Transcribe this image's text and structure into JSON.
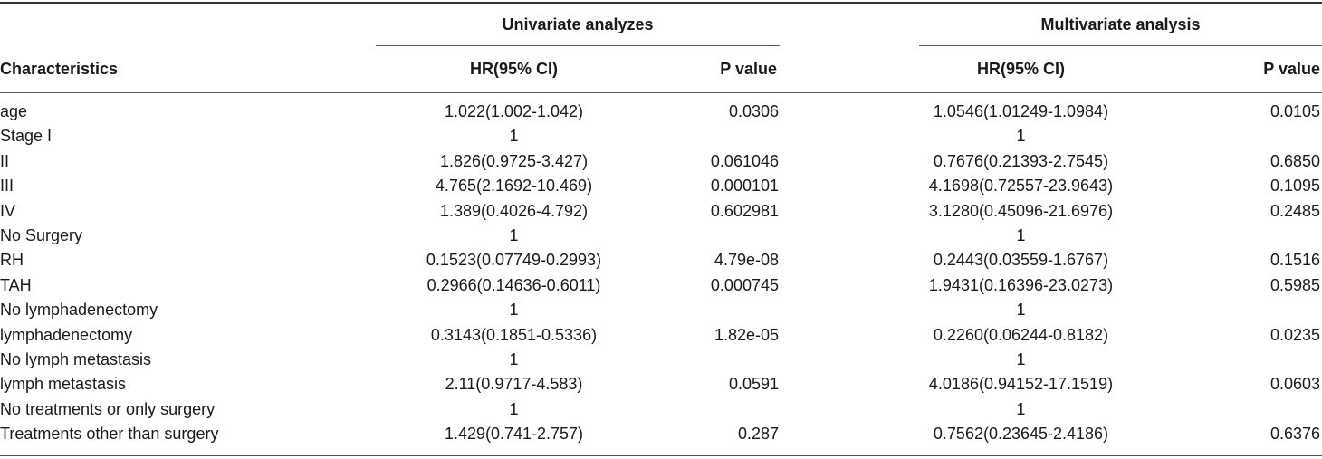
{
  "header": {
    "group_univariate": "Univariate analyzes",
    "group_multivariate": "Multivariate analysis",
    "col_characteristics": "Characteristics",
    "col_hr_uni": "HR(95% CI)",
    "col_p_uni": "P value",
    "col_hr_multi": "HR(95% CI)",
    "col_p_multi": "P value"
  },
  "rows": [
    {
      "name": "age",
      "hr_uni": "1.022(1.002-1.042)",
      "p_uni": "0.0306",
      "hr_multi": "1.0546(1.01249-1.0984)",
      "p_multi": "0.0105"
    },
    {
      "name": "Stage I",
      "hr_uni": "1",
      "p_uni": "",
      "hr_multi": "1",
      "p_multi": ""
    },
    {
      "name": "II",
      "hr_uni": "1.826(0.9725-3.427)",
      "p_uni": "0.061046",
      "hr_multi": "0.7676(0.21393-2.7545)",
      "p_multi": "0.6850"
    },
    {
      "name": "III",
      "hr_uni": "4.765(2.1692-10.469)",
      "p_uni": "0.000101",
      "hr_multi": "4.1698(0.72557-23.9643)",
      "p_multi": "0.1095"
    },
    {
      "name": "IV",
      "hr_uni": "1.389(0.4026-4.792)",
      "p_uni": "0.602981",
      "hr_multi": "3.1280(0.45096-21.6976)",
      "p_multi": "0.2485"
    },
    {
      "name": "No Surgery",
      "hr_uni": "1",
      "p_uni": "",
      "hr_multi": "1",
      "p_multi": ""
    },
    {
      "name": "RH",
      "hr_uni": "0.1523(0.07749-0.2993)",
      "p_uni": "4.79e-08",
      "hr_multi": "0.2443(0.03559-1.6767)",
      "p_multi": "0.1516"
    },
    {
      "name": "TAH",
      "hr_uni": "0.2966(0.14636-0.6011)",
      "p_uni": "0.000745",
      "hr_multi": "1.9431(0.16396-23.0273)",
      "p_multi": "0.5985"
    },
    {
      "name": "No lymphadenectomy",
      "hr_uni": "1",
      "p_uni": "",
      "hr_multi": "1",
      "p_multi": ""
    },
    {
      "name": "lymphadenectomy",
      "hr_uni": "0.3143(0.1851-0.5336)",
      "p_uni": "1.82e-05",
      "hr_multi": "0.2260(0.06244-0.8182)",
      "p_multi": "0.0235"
    },
    {
      "name": "No lymph metastasis",
      "hr_uni": "1",
      "p_uni": "",
      "hr_multi": "1",
      "p_multi": ""
    },
    {
      "name": "lymph metastasis",
      "hr_uni": "2.11(0.9717-4.583)",
      "p_uni": "0.0591",
      "hr_multi": "4.0186(0.94152-17.1519)",
      "p_multi": "0.0603"
    },
    {
      "name": "No treatments or only surgery",
      "hr_uni": "1",
      "p_uni": "",
      "hr_multi": "1",
      "p_multi": ""
    },
    {
      "name": "Treatments other than surgery",
      "hr_uni": "1.429(0.741-2.757)",
      "p_uni": "0.287",
      "hr_multi": "0.7562(0.23645-2.4186)",
      "p_multi": "0.6376"
    }
  ]
}
